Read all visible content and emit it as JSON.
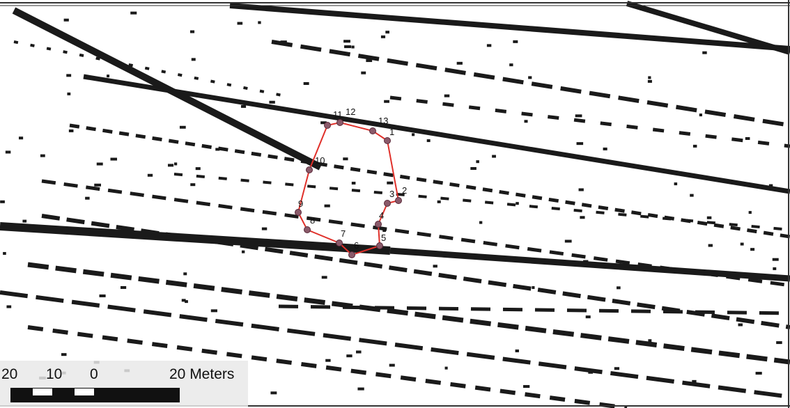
{
  "points": [
    {
      "label": "1"
    },
    {
      "label": "2"
    },
    {
      "label": "3"
    },
    {
      "label": "4"
    },
    {
      "label": "5"
    },
    {
      "label": "6"
    },
    {
      "label": "7"
    },
    {
      "label": "8"
    },
    {
      "label": "9"
    },
    {
      "label": "10"
    },
    {
      "label": "11"
    },
    {
      "label": "12"
    },
    {
      "label": "13"
    }
  ],
  "scale_bar": {
    "labels": [
      "20",
      "10",
      "0",
      "20 Meters"
    ]
  }
}
